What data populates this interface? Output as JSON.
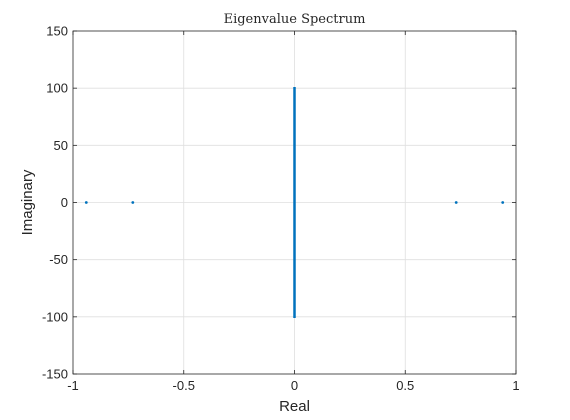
{
  "chart_data": {
    "type": "scatter",
    "title": "Eigenvalue Spectrum",
    "xlabel": "Real",
    "ylabel": "Imaginary",
    "xlim": [
      -1,
      1
    ],
    "ylim": [
      -150,
      150
    ],
    "xticks": [
      -1,
      -0.5,
      0,
      0.5,
      1
    ],
    "xtick_labels": [
      "-1",
      "-0.5",
      "0",
      "0.5",
      "1"
    ],
    "yticks": [
      -150,
      -100,
      -50,
      0,
      50,
      100,
      150
    ],
    "ytick_labels": [
      "-150",
      "-100",
      "-50",
      "0",
      "50",
      "100",
      "150"
    ],
    "grid": true,
    "legend": "none",
    "series_color": "#0072BD",
    "points": [
      {
        "x": -0.94,
        "y": 0
      },
      {
        "x": -0.73,
        "y": 0
      },
      {
        "x": 0.73,
        "y": 0
      },
      {
        "x": 0.94,
        "y": 0
      }
    ],
    "imaginary_axis_eigenvalues": {
      "x": 0,
      "y_min": -101,
      "y_max": 101
    }
  }
}
